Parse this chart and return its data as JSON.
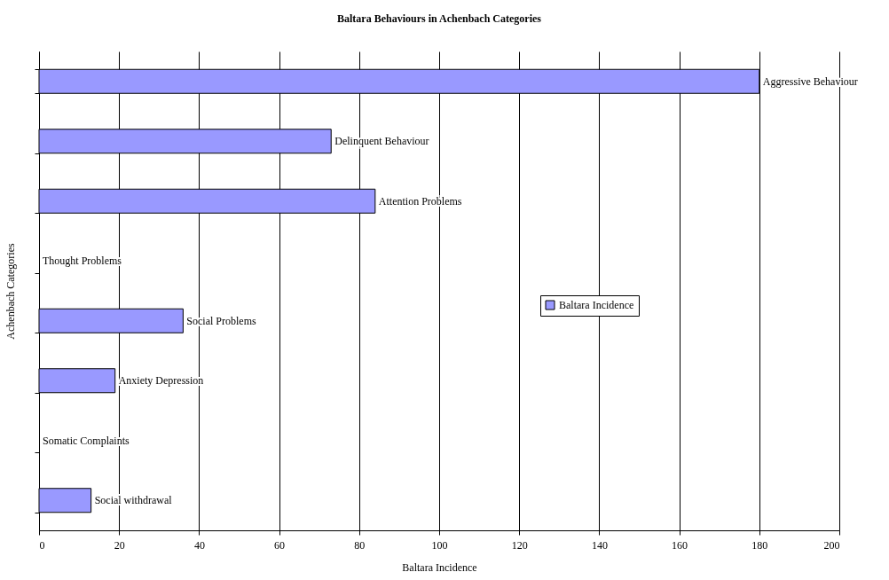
{
  "chart_data": {
    "type": "bar",
    "orientation": "horizontal",
    "title": "Baltara Behaviours in Achenbach Categories",
    "xlabel": "Baltara Incidence",
    "ylabel": "Achenbach Categories",
    "categories": [
      "Aggressive Behaviour",
      "Delinquent Behaviour",
      "Attention Problems",
      "Thought Problems",
      "Social Problems",
      "Anxiety Depression",
      "Somatic Complaints",
      "Social withdrawal"
    ],
    "series": [
      {
        "name": "Baltara Incidence",
        "color": "#9999ff",
        "values": [
          180,
          73,
          84,
          0,
          36,
          19,
          0,
          13
        ]
      }
    ],
    "xlim": [
      0,
      200
    ],
    "xticks": [
      0,
      20,
      40,
      60,
      80,
      100,
      120,
      140,
      160,
      180,
      200
    ],
    "grid": "x",
    "legend": "right"
  }
}
